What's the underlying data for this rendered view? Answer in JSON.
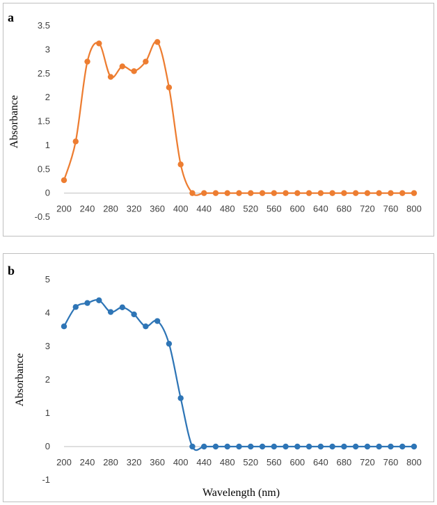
{
  "chart_data": [
    {
      "type": "line",
      "panel_label": "a",
      "ylabel": "Absorbance",
      "xlabel": "",
      "color": "#ED7D31",
      "xlim": [
        200,
        800
      ],
      "ylim": [
        -0.5,
        3.5
      ],
      "y_ticks": [
        "-0.5",
        "0",
        "0.5",
        "1",
        "1.5",
        "2",
        "2.5",
        "3",
        "3.5"
      ],
      "x_ticks": [
        "200",
        "240",
        "280",
        "320",
        "360",
        "400",
        "440",
        "480",
        "520",
        "560",
        "600",
        "640",
        "680",
        "720",
        "760",
        "800"
      ],
      "x": [
        200,
        220,
        240,
        260,
        280,
        300,
        320,
        340,
        360,
        380,
        400,
        420,
        440,
        460,
        480,
        500,
        520,
        540,
        560,
        580,
        600,
        620,
        640,
        660,
        680,
        700,
        720,
        740,
        760,
        780,
        800
      ],
      "y": [
        0.27,
        1.08,
        2.75,
        3.13,
        2.43,
        2.65,
        2.55,
        2.75,
        3.16,
        2.21,
        0.6,
        0,
        0,
        0,
        0,
        0,
        0,
        0,
        0,
        0,
        0,
        0,
        0,
        0,
        0,
        0,
        0,
        0,
        0,
        0,
        0
      ]
    },
    {
      "type": "line",
      "panel_label": "b",
      "ylabel": "Absorbance",
      "xlabel": "Wavelength  (nm)",
      "color": "#2E75B6",
      "xlim": [
        200,
        800
      ],
      "ylim": [
        -1,
        5
      ],
      "y_ticks": [
        "-1",
        "0",
        "1",
        "2",
        "3",
        "4",
        "5"
      ],
      "x_ticks": [
        "200",
        "240",
        "280",
        "320",
        "360",
        "400",
        "440",
        "480",
        "520",
        "560",
        "600",
        "640",
        "680",
        "720",
        "760",
        "800"
      ],
      "x": [
        200,
        220,
        240,
        260,
        280,
        300,
        320,
        340,
        360,
        380,
        400,
        420,
        440,
        460,
        480,
        500,
        520,
        540,
        560,
        580,
        600,
        620,
        640,
        660,
        680,
        700,
        720,
        740,
        760,
        780,
        800
      ],
      "y": [
        3.6,
        4.18,
        4.3,
        4.38,
        4.03,
        4.17,
        3.96,
        3.6,
        3.76,
        3.08,
        1.45,
        0,
        0,
        0,
        0,
        0,
        0,
        0,
        0,
        0,
        0,
        0,
        0,
        0,
        0,
        0,
        0,
        0,
        0,
        0,
        0
      ]
    }
  ]
}
